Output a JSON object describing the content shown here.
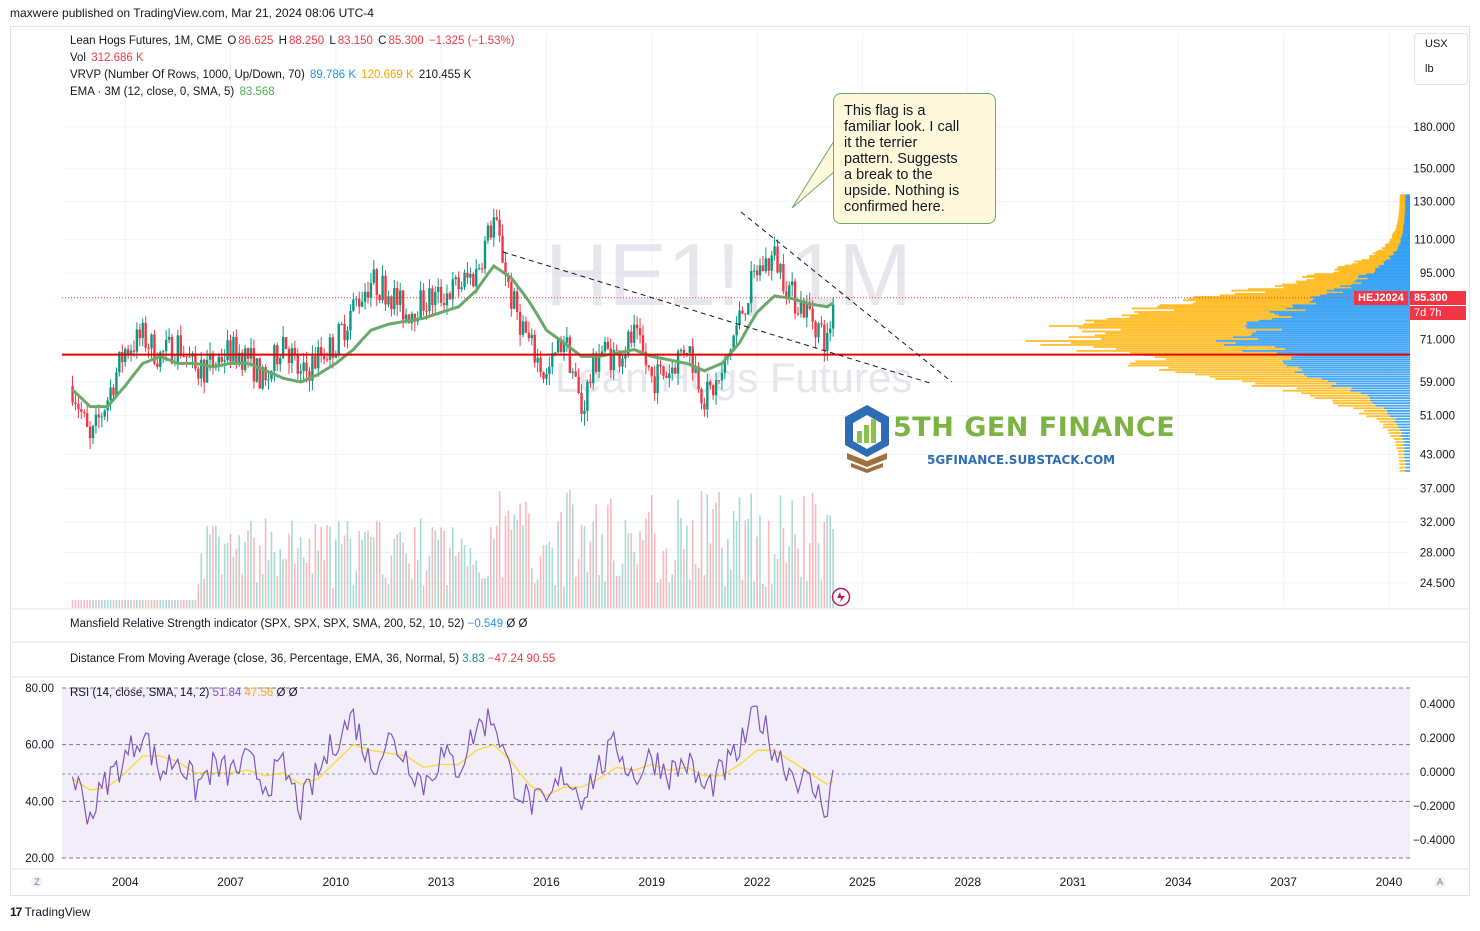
{
  "header": {
    "published": "maxwere published on TradingView.com, Mar 21, 2024 08:06 UTC-4"
  },
  "legend": {
    "symbol": "Lean Hogs Futures, 1M, CME",
    "o_label": "O",
    "o_value": "86.625",
    "h_label": "H",
    "h_value": "88.250",
    "l_label": "L",
    "l_value": "83.150",
    "c_label": "C",
    "c_value": "85.300",
    "change": "−1.325 (−1.53%)",
    "vol_label": "Vol",
    "vol_value": "312.686 K",
    "vrvp_label": "VRVP (Number Of Rows, 1000, Up/Down, 70)",
    "vrvp_up": "89.786 K",
    "vrvp_down": "120.669 K",
    "vrvp_total": "210.455 K",
    "ema_label": "EMA · 3M (12, close, 0, SMA, 5)",
    "ema_value": "83.568"
  },
  "scale": {
    "currency": "USX",
    "unit": "lb"
  },
  "watermark": {
    "ticker": "HE1!, 1M",
    "name": "Lean Hogs Futures"
  },
  "annotation": {
    "lines": [
      "This flag is a",
      "familiar look.  I call",
      "it the terrier",
      "pattern.  Suggests",
      "a break to the",
      "upside.  Nothing is",
      "confirmed here."
    ]
  },
  "price_tag": {
    "symbol": "HEJ2024",
    "price": "85.300",
    "countdown": "7d 7h"
  },
  "brand": {
    "name": "5TH GEN FINANCE",
    "url": "5GFINANCE.SUBSTACK.COM"
  },
  "panels": {
    "mansfield": {
      "label": "Mansfield Relative Strength indicator (SPX, SPX, SPX, SMA, 200, 52, 10, 52)",
      "value": "−0.549",
      "extra1": "Ø",
      "extra2": "Ø"
    },
    "distance": {
      "label": "Distance From Moving Average (close, 36, Percentage, EMA, 36, Normal, 5)",
      "v1": "3.83",
      "v2": "−47.24",
      "v3": "90.55"
    },
    "rsi": {
      "label": "RSI (14, close, SMA, 14, 2)",
      "v1": "51.84",
      "v2": "47.56",
      "extra1": "Ø",
      "extra2": "Ø"
    }
  },
  "footer": {
    "brand": "TradingView"
  },
  "buttons": {
    "log_z": "Z",
    "auto_a": "A"
  },
  "colors": {
    "up": "#089981",
    "down": "#f23645",
    "ema": "#6aa96a",
    "support": "#e00000",
    "vp_up": "#2196f3",
    "vp_down": "#ffb40a",
    "rsi": "#7e57c2",
    "rsi_ma": "#fdd835"
  },
  "chart_data": [
    {
      "type": "candlestick",
      "title": "Lean Hogs Futures, 1M, CME",
      "y_scale": "log",
      "y_ticks": [
        "180.000",
        "150.000",
        "130.000",
        "110.000",
        "95.000",
        "71.000",
        "59.000",
        "51.000",
        "43.000",
        "37.000",
        "32.000",
        "28.000",
        "24.500"
      ],
      "x_ticks": [
        "2004",
        "2007",
        "2010",
        "2013",
        "2016",
        "2019",
        "2022",
        "2025",
        "2028",
        "2031",
        "2034",
        "2037",
        "2040"
      ],
      "x_range": [
        2002.2,
        2040.6
      ],
      "last_close": 85.3,
      "support_level": 66.5,
      "series": [
        {
          "name": "Close (approx.)",
          "x": [
            2002.5,
            2003.0,
            2003.5,
            2004.0,
            2004.5,
            2005.0,
            2005.5,
            2006.0,
            2006.5,
            2007.0,
            2007.5,
            2008.0,
            2008.5,
            2009.0,
            2009.5,
            2010.0,
            2010.5,
            2011.0,
            2011.5,
            2012.0,
            2012.5,
            2013.0,
            2013.5,
            2014.0,
            2014.5,
            2015.0,
            2015.5,
            2016.0,
            2016.5,
            2017.0,
            2017.5,
            2018.0,
            2018.5,
            2019.0,
            2019.5,
            2020.0,
            2020.5,
            2021.0,
            2021.5,
            2022.0,
            2022.5,
            2023.0,
            2023.5,
            2024.0,
            2024.2
          ],
          "y": [
            58,
            45,
            55,
            68,
            72,
            66,
            70,
            62,
            64,
            68,
            66,
            58,
            72,
            60,
            66,
            70,
            82,
            92,
            88,
            80,
            84,
            86,
            90,
            95,
            120,
            85,
            70,
            60,
            72,
            52,
            68,
            66,
            72,
            60,
            62,
            70,
            55,
            60,
            78,
            96,
            102,
            86,
            80,
            70,
            85.3
          ]
        },
        {
          "name": "EMA 3M",
          "x": [
            2002.5,
            2003.0,
            2003.5,
            2004.0,
            2004.5,
            2005.0,
            2005.5,
            2006.0,
            2006.5,
            2007.0,
            2007.5,
            2008.0,
            2008.5,
            2009.0,
            2009.5,
            2010.0,
            2010.5,
            2011.0,
            2011.5,
            2012.0,
            2012.5,
            2013.0,
            2013.5,
            2014.0,
            2014.5,
            2015.0,
            2015.5,
            2016.0,
            2016.5,
            2017.0,
            2017.5,
            2018.0,
            2018.5,
            2019.0,
            2019.5,
            2020.0,
            2020.5,
            2021.0,
            2021.5,
            2022.0,
            2022.5,
            2023.0,
            2023.5,
            2024.0,
            2024.2
          ],
          "y": [
            57,
            53,
            53,
            58,
            64,
            66,
            64,
            64,
            63,
            64,
            64,
            62,
            60,
            59,
            61,
            64,
            68,
            74,
            76,
            77,
            78,
            80,
            82,
            88,
            98,
            93,
            84,
            74,
            70,
            66,
            66,
            67,
            68,
            66,
            65,
            64,
            62,
            64,
            70,
            80,
            86,
            85,
            83,
            82,
            83.6
          ]
        }
      ]
    },
    {
      "type": "line",
      "title": "RSI (14, close, SMA, 14, 2)",
      "y_ticks": [
        "80.00",
        "60.00",
        "40.00",
        "20.00"
      ],
      "right_ticks": [
        "0.4000",
        "0.2000",
        "0.0000",
        "−0.2000",
        "−0.4000"
      ],
      "ylim": [
        20,
        80
      ],
      "series": [
        {
          "name": "RSI",
          "x": [
            2002.5,
            2003.0,
            2003.5,
            2004.0,
            2004.5,
            2005.0,
            2005.5,
            2006.0,
            2006.5,
            2007.0,
            2007.5,
            2008.0,
            2008.5,
            2009.0,
            2009.5,
            2010.0,
            2010.5,
            2011.0,
            2011.5,
            2012.0,
            2012.5,
            2013.0,
            2013.5,
            2014.0,
            2014.5,
            2015.0,
            2015.5,
            2016.0,
            2016.5,
            2017.0,
            2017.5,
            2018.0,
            2018.5,
            2019.0,
            2019.5,
            2020.0,
            2020.5,
            2021.0,
            2021.5,
            2022.0,
            2022.5,
            2023.0,
            2023.5,
            2024.0,
            2024.2
          ],
          "y": [
            50,
            35,
            48,
            55,
            65,
            50,
            56,
            45,
            52,
            50,
            54,
            46,
            52,
            38,
            50,
            62,
            70,
            52,
            62,
            56,
            46,
            56,
            52,
            66,
            70,
            48,
            40,
            38,
            50,
            42,
            52,
            60,
            48,
            56,
            50,
            54,
            44,
            50,
            58,
            72,
            58,
            50,
            46,
            38,
            51.84
          ]
        },
        {
          "name": "RSI-based MA",
          "x": [
            2002.5,
            2003.0,
            2003.5,
            2004.0,
            2004.5,
            2005.0,
            2005.5,
            2006.0,
            2006.5,
            2007.0,
            2007.5,
            2008.0,
            2008.5,
            2009.0,
            2009.5,
            2010.0,
            2010.5,
            2011.0,
            2011.5,
            2012.0,
            2012.5,
            2013.0,
            2013.5,
            2014.0,
            2014.5,
            2015.0,
            2015.5,
            2016.0,
            2016.5,
            2017.0,
            2017.5,
            2018.0,
            2018.5,
            2019.0,
            2019.5,
            2020.0,
            2020.5,
            2021.0,
            2021.5,
            2022.0,
            2022.5,
            2023.0,
            2023.5,
            2024.0,
            2024.2
          ],
          "y": [
            48,
            44,
            45,
            50,
            56,
            56,
            54,
            50,
            50,
            50,
            51,
            49,
            50,
            46,
            48,
            54,
            60,
            58,
            57,
            56,
            52,
            53,
            53,
            58,
            60,
            54,
            46,
            42,
            45,
            45,
            48,
            52,
            51,
            53,
            51,
            52,
            49,
            49,
            53,
            58,
            58,
            54,
            50,
            46,
            47.56
          ]
        }
      ]
    }
  ]
}
